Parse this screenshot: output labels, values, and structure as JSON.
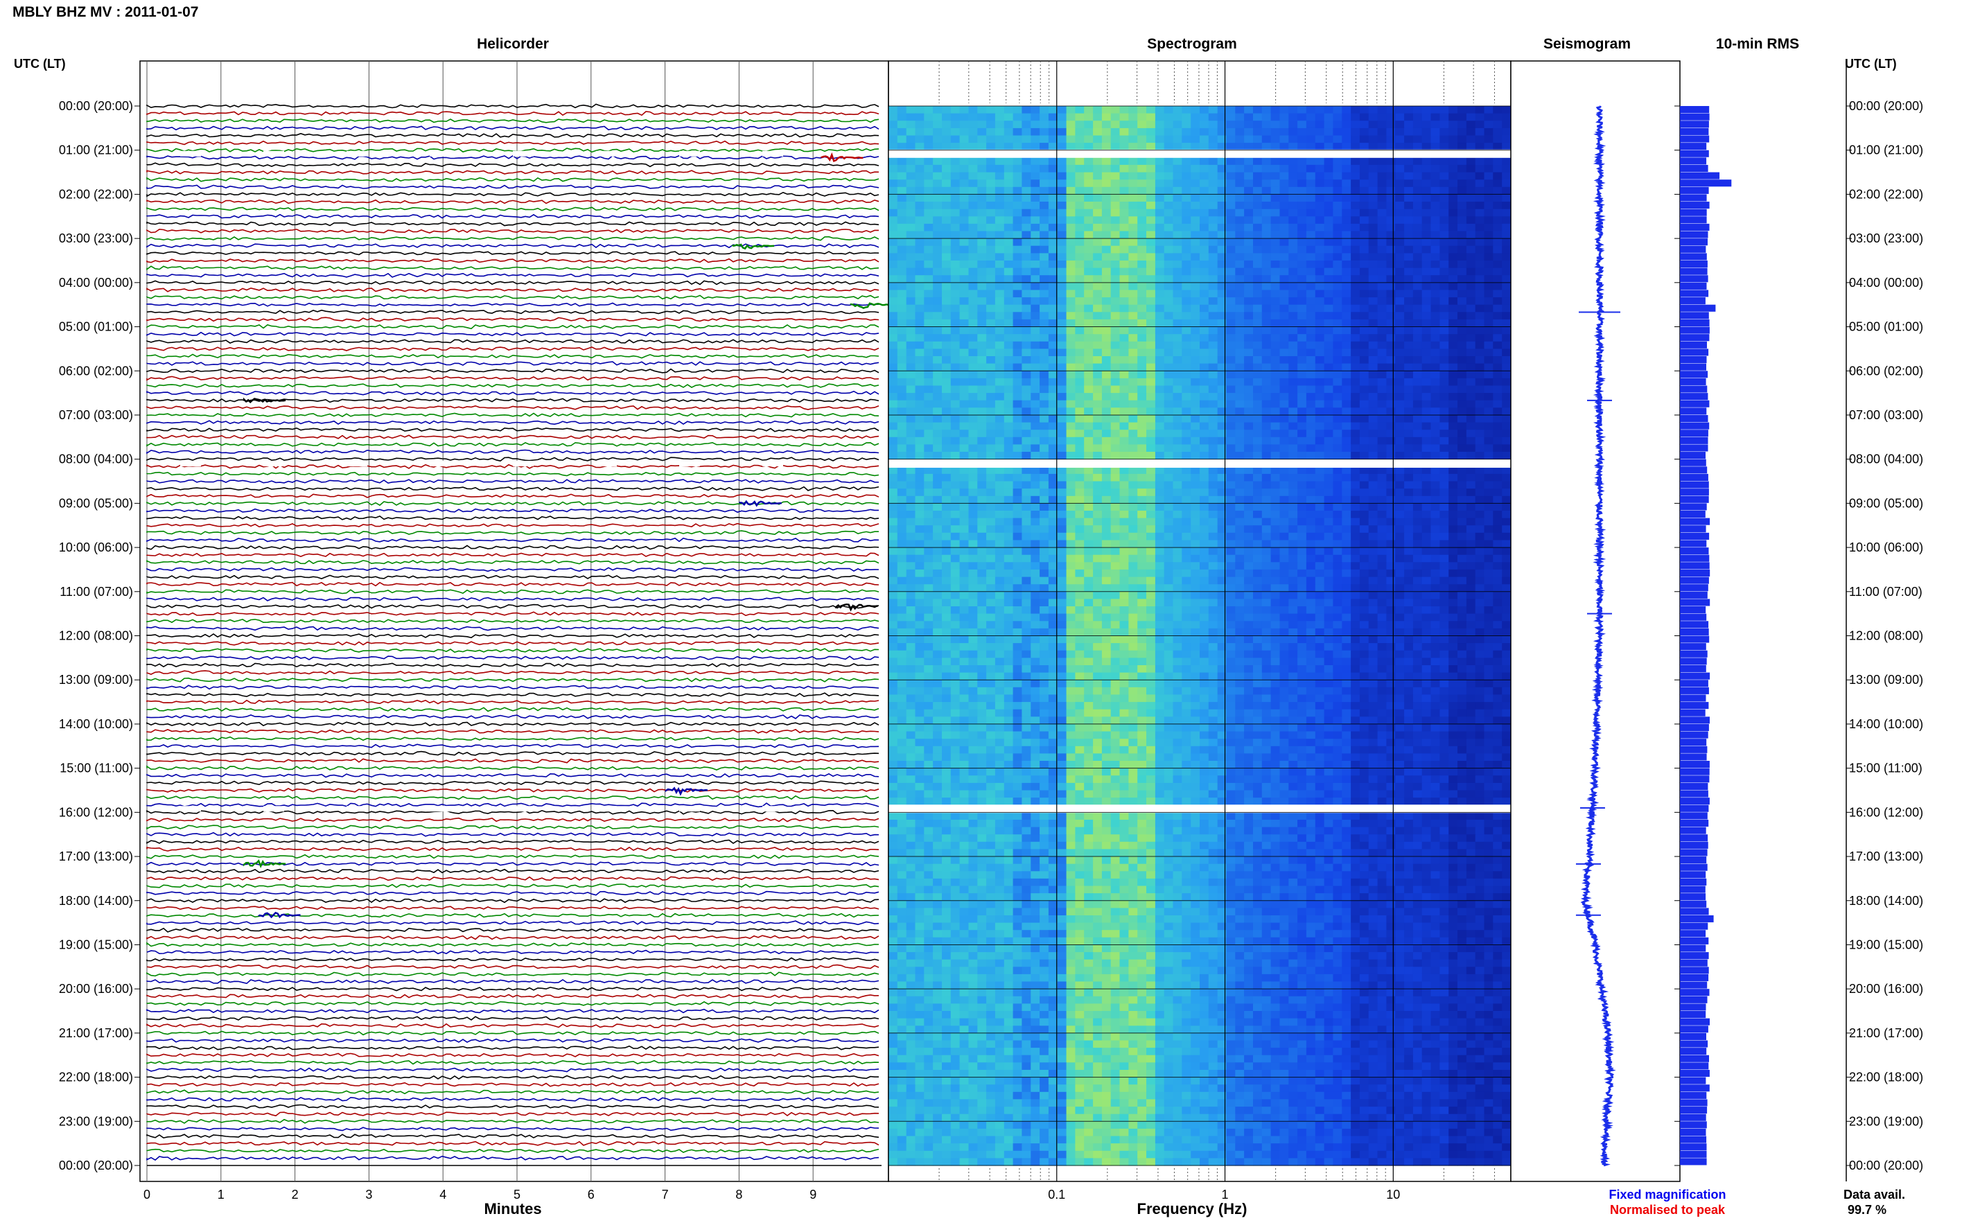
{
  "header": {
    "title": "MBLY BHZ MV : 2011-01-07"
  },
  "panels": {
    "helicorder": "Helicorder",
    "spectrogram": "Spectrogram",
    "seismogram": "Seismogram",
    "rms": "10-min RMS"
  },
  "axis_headers": {
    "left": "UTC (LT)",
    "right": "UTC (LT)"
  },
  "legend": {
    "fixed": "Fixed magnification",
    "normalised": "Normalised to peak",
    "fixed_color": "#0000ee",
    "normalised_color": "#ee0000"
  },
  "data_avail": {
    "label": "Data avail.",
    "value": "99.7 %"
  },
  "colors": {
    "trace_cycle": [
      "#000000",
      "#aa0000",
      "#008800",
      "#0000aa"
    ],
    "seismogram": "#1a2eea",
    "rms_bar": "#1a2eea",
    "gap": "#ffffff"
  },
  "chart_data": [
    {
      "type": "line",
      "title": "Helicorder",
      "xlabel": "Minutes",
      "ylabel": "UTC (LT)",
      "xlim": [
        0,
        10
      ],
      "x_ticks": [
        0,
        1,
        2,
        3,
        4,
        5,
        6,
        7,
        8,
        9
      ],
      "y_tick_labels": [
        "00:00 (20:00)",
        "01:00 (21:00)",
        "02:00 (22:00)",
        "03:00 (23:00)",
        "04:00 (00:00)",
        "05:00 (01:00)",
        "06:00 (02:00)",
        "07:00 (03:00)",
        "08:00 (04:00)",
        "09:00 (05:00)",
        "10:00 (06:00)",
        "11:00 (07:00)",
        "12:00 (08:00)",
        "13:00 (09:00)",
        "14:00 (10:00)",
        "15:00 (11:00)",
        "16:00 (12:00)",
        "17:00 (13:00)",
        "18:00 (14:00)",
        "19:00 (15:00)",
        "20:00 (16:00)",
        "21:00 (17:00)",
        "22:00 (18:00)",
        "23:00 (19:00)",
        "00:00 (20:00)"
      ],
      "traces_per_hour": 6,
      "events": [
        {
          "hour": 1.17,
          "minute": 9.3,
          "color": "red"
        },
        {
          "hour": 3.17,
          "minute": 8.1,
          "color": "green"
        },
        {
          "hour": 4.5,
          "minute": 9.7,
          "color": "green"
        },
        {
          "hour": 6.67,
          "minute": 1.5,
          "color": "black"
        },
        {
          "hour": 9.0,
          "minute": 8.2,
          "color": "blue"
        },
        {
          "hour": 11.33,
          "minute": 9.5,
          "color": "black"
        },
        {
          "hour": 15.5,
          "minute": 7.2,
          "color": "blue"
        },
        {
          "hour": 17.17,
          "minute": 1.5,
          "color": "green"
        },
        {
          "hour": 18.33,
          "minute": 1.7,
          "color": "blue"
        }
      ]
    },
    {
      "type": "heatmap",
      "title": "Spectrogram",
      "xlabel": "Frequency (Hz)",
      "x_scale": "log",
      "xlim": [
        0.01,
        50
      ],
      "x_ticks": [
        0.1,
        1,
        10
      ],
      "gaps_hours": [
        1.08,
        8.1,
        15.92
      ],
      "peak_band_hz": [
        0.12,
        0.3
      ]
    },
    {
      "type": "line",
      "title": "Seismogram",
      "description_points_hour": [
        0,
        4,
        8,
        12,
        15,
        17,
        18,
        19,
        21,
        22,
        24
      ],
      "offset": [
        0,
        0,
        0,
        0,
        -0.1,
        -0.25,
        -0.35,
        -0.1,
        0.2,
        0.25,
        0.1
      ],
      "spikes_hours": [
        4.67,
        6.67,
        11.5,
        15.9,
        17.17,
        18.33
      ]
    },
    {
      "type": "bar",
      "title": "10-min RMS",
      "orientation": "horizontal",
      "bars_per_hour": 6,
      "baseline_width": 0.7,
      "peaks": [
        {
          "hour": 1.5,
          "value": 1.0
        },
        {
          "hour": 1.67,
          "value": 1.3
        },
        {
          "hour": 4.5,
          "value": 0.9
        },
        {
          "hour": 18.33,
          "value": 0.85
        }
      ]
    }
  ]
}
